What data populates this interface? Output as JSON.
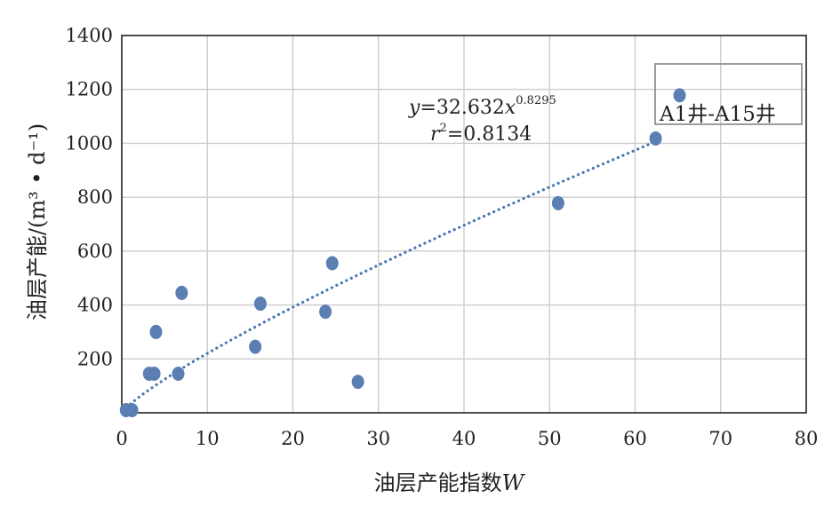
{
  "chart_data": {
    "type": "scatter",
    "xlabel_prefix": "油层产能指数",
    "xlabel_var": "W",
    "ylabel_prefix": "油层产能/",
    "ylabel_unit": "(m³ • d⁻¹)",
    "xlim": [
      0,
      80
    ],
    "ylim": [
      0,
      1400
    ],
    "xticks": [
      0,
      10,
      20,
      30,
      40,
      50,
      60,
      70,
      80
    ],
    "yticks": [
      200,
      400,
      600,
      800,
      1000,
      1200,
      1400
    ],
    "grid": true,
    "colors": {
      "points": "#5b7fb3",
      "trendline": "#4a75b0",
      "grid": "#cccccc"
    },
    "series": [
      {
        "name": "A1井-A15井",
        "points": [
          {
            "x": 0.5,
            "y": 10
          },
          {
            "x": 1.2,
            "y": 10
          },
          {
            "x": 3.2,
            "y": 145
          },
          {
            "x": 3.8,
            "y": 145
          },
          {
            "x": 4.0,
            "y": 300
          },
          {
            "x": 6.6,
            "y": 145
          },
          {
            "x": 7.0,
            "y": 445
          },
          {
            "x": 15.6,
            "y": 245
          },
          {
            "x": 16.2,
            "y": 405
          },
          {
            "x": 23.8,
            "y": 375
          },
          {
            "x": 24.6,
            "y": 555
          },
          {
            "x": 27.6,
            "y": 115
          },
          {
            "x": 51.0,
            "y": 778
          },
          {
            "x": 62.4,
            "y": 1018
          },
          {
            "x": 65.2,
            "y": 1178
          }
        ]
      }
    ],
    "trendline": {
      "type": "power",
      "coefficient": 32.632,
      "exponent": 0.8295,
      "x_range": [
        1,
        62.4
      ],
      "equation_y": "y",
      "equation_eq": "=32.632",
      "equation_x": "x",
      "equation_exp": "0.8295",
      "r2_r": "r",
      "r2_sup": "2",
      "r2_value": "=0.8134"
    },
    "legend": {
      "label": "A1井-A15井",
      "placement": "top-right"
    }
  }
}
